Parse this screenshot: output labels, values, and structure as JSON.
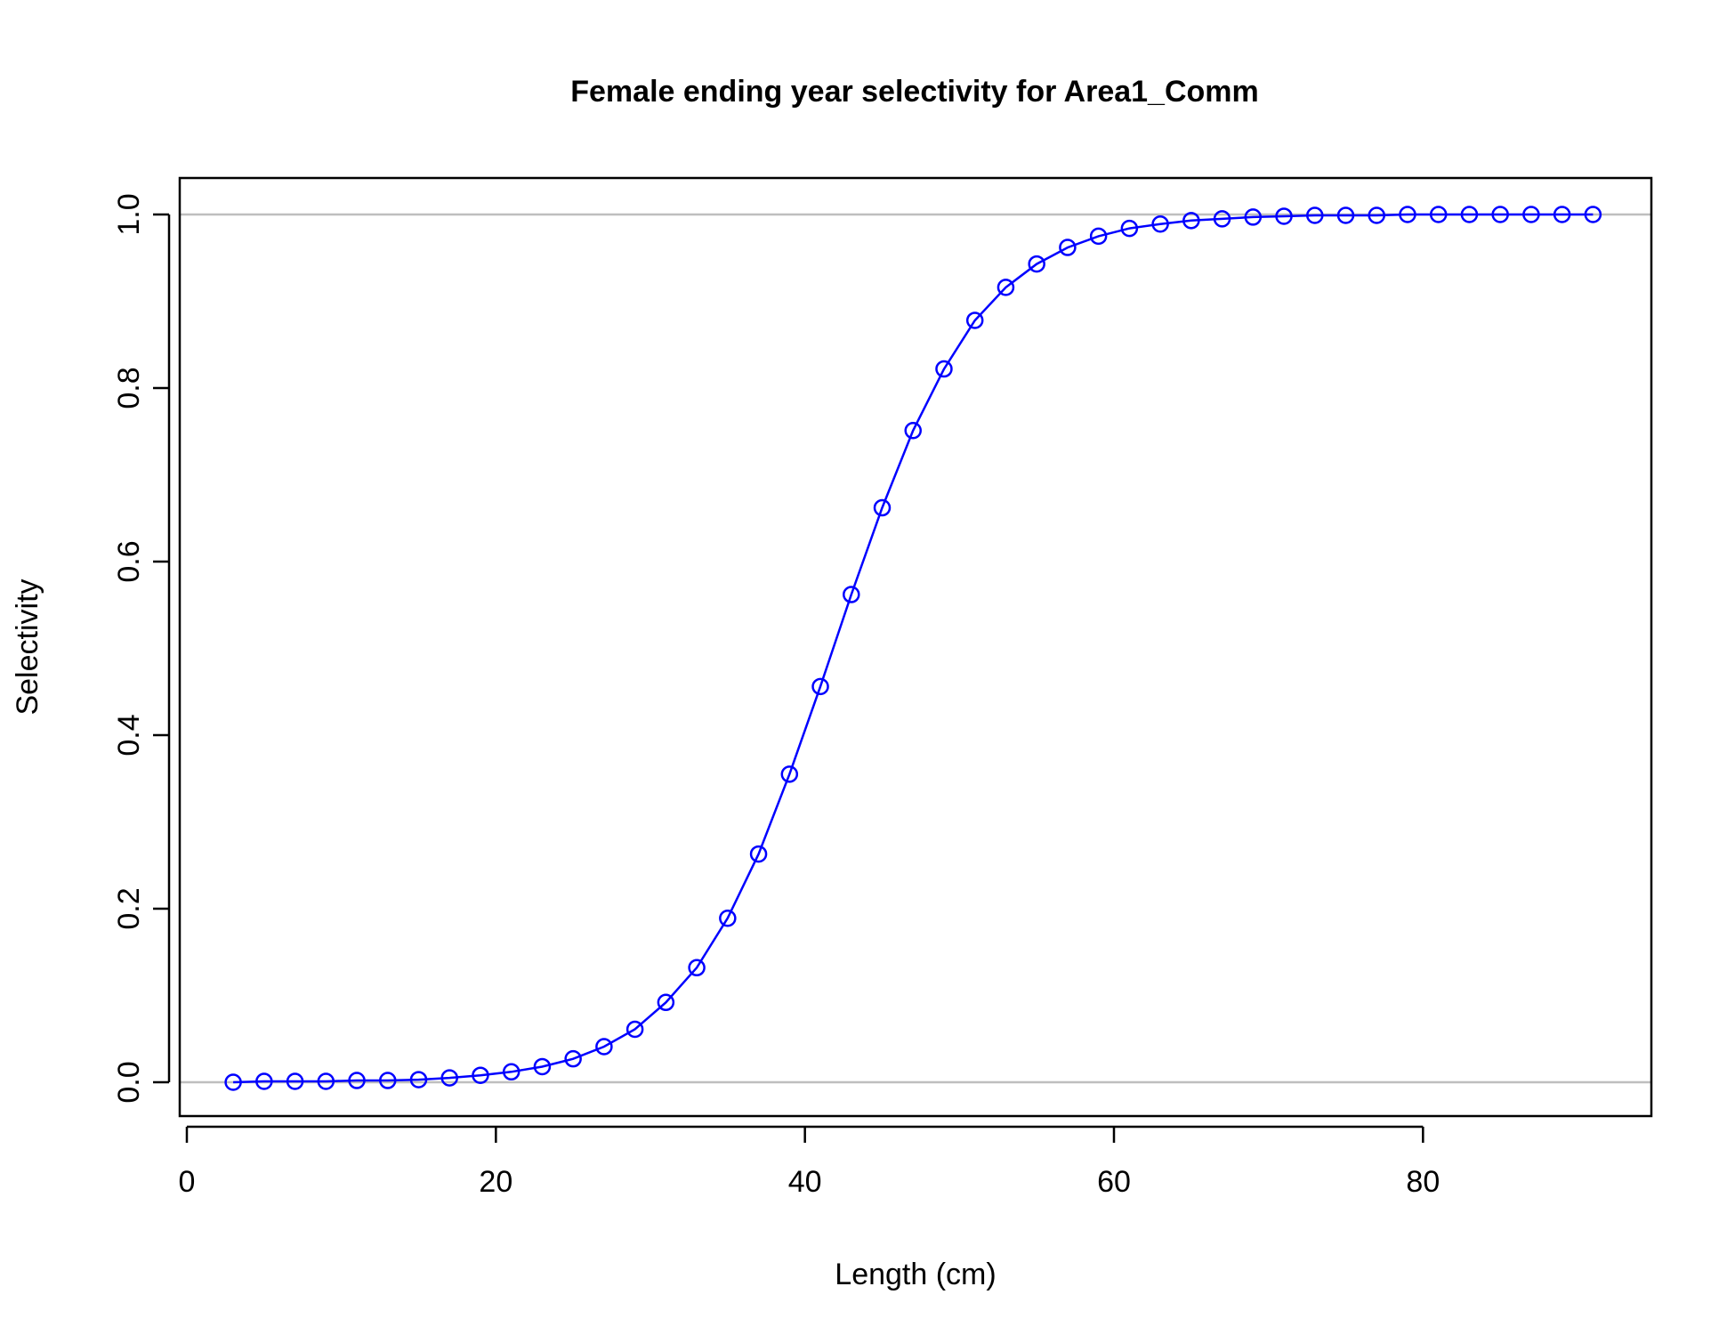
{
  "chart_data": {
    "type": "line",
    "title": "Female ending year selectivity for Area1_Comm",
    "xlabel": "Length (cm)",
    "ylabel": "Selectivity",
    "xlim": [
      0,
      95
    ],
    "ylim": [
      0,
      1
    ],
    "x_ticks": [
      "0",
      "20",
      "40",
      "60",
      "80"
    ],
    "y_ticks": [
      "0.0",
      "0.2",
      "0.4",
      "0.6",
      "0.8",
      "1.0"
    ],
    "reference_lines": [
      0,
      1
    ],
    "grid": false,
    "colors": {
      "series": "#0000ff",
      "reference": "#bebebe",
      "axis": "#000000"
    },
    "series": [
      {
        "marker": "open-circle",
        "x": [
          3,
          5,
          7,
          9,
          11,
          13,
          15,
          17,
          19,
          21,
          23,
          25,
          27,
          29,
          31,
          33,
          35,
          37,
          39,
          41,
          43,
          45,
          47,
          49,
          51,
          53,
          55,
          57,
          59,
          61,
          63,
          65,
          67,
          69,
          71,
          73,
          75,
          77,
          79,
          81,
          83,
          85,
          87,
          89,
          91
        ],
        "values": [
          0.0,
          0.001,
          0.001,
          0.001,
          0.002,
          0.002,
          0.003,
          0.005,
          0.008,
          0.012,
          0.018,
          0.027,
          0.041,
          0.061,
          0.092,
          0.132,
          0.189,
          0.263,
          0.355,
          0.456,
          0.562,
          0.662,
          0.751,
          0.822,
          0.878,
          0.916,
          0.943,
          0.962,
          0.975,
          0.984,
          0.989,
          0.993,
          0.995,
          0.997,
          0.998,
          0.999,
          0.999,
          0.999,
          1.0,
          1.0,
          1.0,
          1.0,
          1.0,
          1.0,
          1.0
        ]
      }
    ]
  }
}
